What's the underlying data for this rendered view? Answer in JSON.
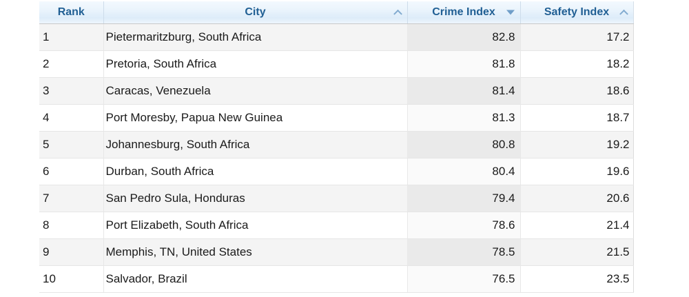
{
  "table": {
    "columns": [
      {
        "label": "Rank",
        "sort_icon": "none"
      },
      {
        "label": "City",
        "sort_icon": "chevron-up"
      },
      {
        "label": "Crime Index",
        "sort_icon": "triangle-down"
      },
      {
        "label": "Safety Index",
        "sort_icon": "chevron-up"
      }
    ],
    "rows": [
      {
        "rank": "1",
        "city": "Pietermaritzburg, South Africa",
        "crime_index": "82.8",
        "safety_index": "17.2"
      },
      {
        "rank": "2",
        "city": "Pretoria, South Africa",
        "crime_index": "81.8",
        "safety_index": "18.2"
      },
      {
        "rank": "3",
        "city": "Caracas, Venezuela",
        "crime_index": "81.4",
        "safety_index": "18.6"
      },
      {
        "rank": "4",
        "city": "Port Moresby, Papua New Guinea",
        "crime_index": "81.3",
        "safety_index": "18.7"
      },
      {
        "rank": "5",
        "city": "Johannesburg, South Africa",
        "crime_index": "80.8",
        "safety_index": "19.2"
      },
      {
        "rank": "6",
        "city": "Durban, South Africa",
        "crime_index": "80.4",
        "safety_index": "19.6"
      },
      {
        "rank": "7",
        "city": "San Pedro Sula, Honduras",
        "crime_index": "79.4",
        "safety_index": "20.6"
      },
      {
        "rank": "8",
        "city": "Port Elizabeth, South Africa",
        "crime_index": "78.6",
        "safety_index": "21.4"
      },
      {
        "rank": "9",
        "city": "Memphis, TN, United States",
        "crime_index": "78.5",
        "safety_index": "21.5"
      },
      {
        "rank": "10",
        "city": "Salvador, Brazil",
        "crime_index": "76.5",
        "safety_index": "23.5"
      }
    ]
  },
  "colors": {
    "header_text": "#205f94",
    "header_gradient_top": "#f3f9fe",
    "header_gradient_mid": "#ddecf9",
    "sort_icon_blue": "#82abd0",
    "odd_row_bg": "#f4f4f4",
    "odd_row_sorted_bg": "#eaeaea",
    "even_row_bg": "#ffffff",
    "even_row_sorted_bg": "#fafafa",
    "body_text": "#1a1a1a"
  }
}
